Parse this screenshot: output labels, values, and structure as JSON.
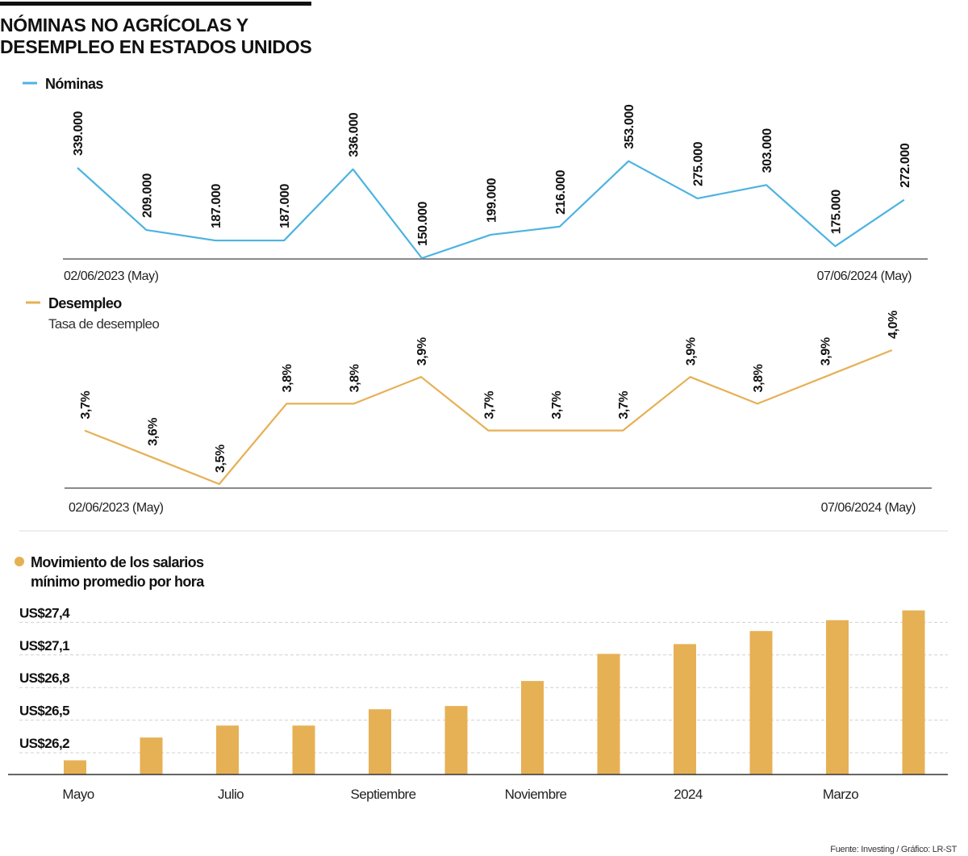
{
  "title": {
    "line1": "NÓMINAS NO AGRÍCOLAS Y",
    "line2": "DESEMPLEO EN ESTADOS UNIDOS"
  },
  "colors": {
    "nominas": "#4db3e0",
    "desempleo": "#e6b055",
    "bars": "#e6b055",
    "axis": "#444444",
    "grid": "#d0d0d0"
  },
  "source": "Fuente: Investing / Gráfico: LR-ST",
  "chart_data": [
    {
      "type": "line",
      "legend": "Nóminas",
      "x_start_label": "02/06/2023 (May)",
      "x_end_label": "07/06/2024 (May)",
      "values": [
        339000,
        209000,
        187000,
        187000,
        336000,
        150000,
        199000,
        216000,
        353000,
        275000,
        303000,
        175000,
        272000
      ],
      "data_labels": [
        "339.000",
        "209.000",
        "187.000",
        "187.000",
        "336.000",
        "150.000",
        "199.000",
        "216.000",
        "353.000",
        "275.000",
        "303.000",
        "175.000",
        "272.000"
      ]
    },
    {
      "type": "line",
      "legend": "Desempleo",
      "subtitle": "Tasa de desempleo",
      "x_start_label": "02/06/2023 (May)",
      "x_end_label": "07/06/2024 (May)",
      "values": [
        3.7,
        3.6,
        3.5,
        3.8,
        3.8,
        3.9,
        3.7,
        3.7,
        3.7,
        3.9,
        3.8,
        3.9,
        4.0
      ],
      "data_labels": [
        "3,7%",
        "3,6%",
        "3,5%",
        "3,8%",
        "3,8%",
        "3,9%",
        "3,7%",
        "3,7%",
        "3,7%",
        "3,9%",
        "3,8%",
        "3,9%",
        "4,0%"
      ]
    },
    {
      "type": "bar",
      "legend_line1": "Movimiento de los salarios",
      "legend_line2": "mínimo promedio por hora",
      "categories": [
        "Mayo",
        "",
        "Julio",
        "",
        "Septiembre",
        "",
        "Noviembre",
        "",
        "2024",
        "",
        "Marzo",
        ""
      ],
      "values": [
        26.13,
        26.34,
        26.45,
        26.45,
        26.6,
        26.63,
        26.86,
        27.11,
        27.2,
        27.32,
        27.42,
        27.51
      ],
      "yticks": [
        26.2,
        26.5,
        26.8,
        27.1,
        27.4
      ],
      "ytick_labels": [
        "US$26,2",
        "US$26,5",
        "US$26,8",
        "US$27,1",
        "US$27,4"
      ],
      "grid": true
    }
  ]
}
